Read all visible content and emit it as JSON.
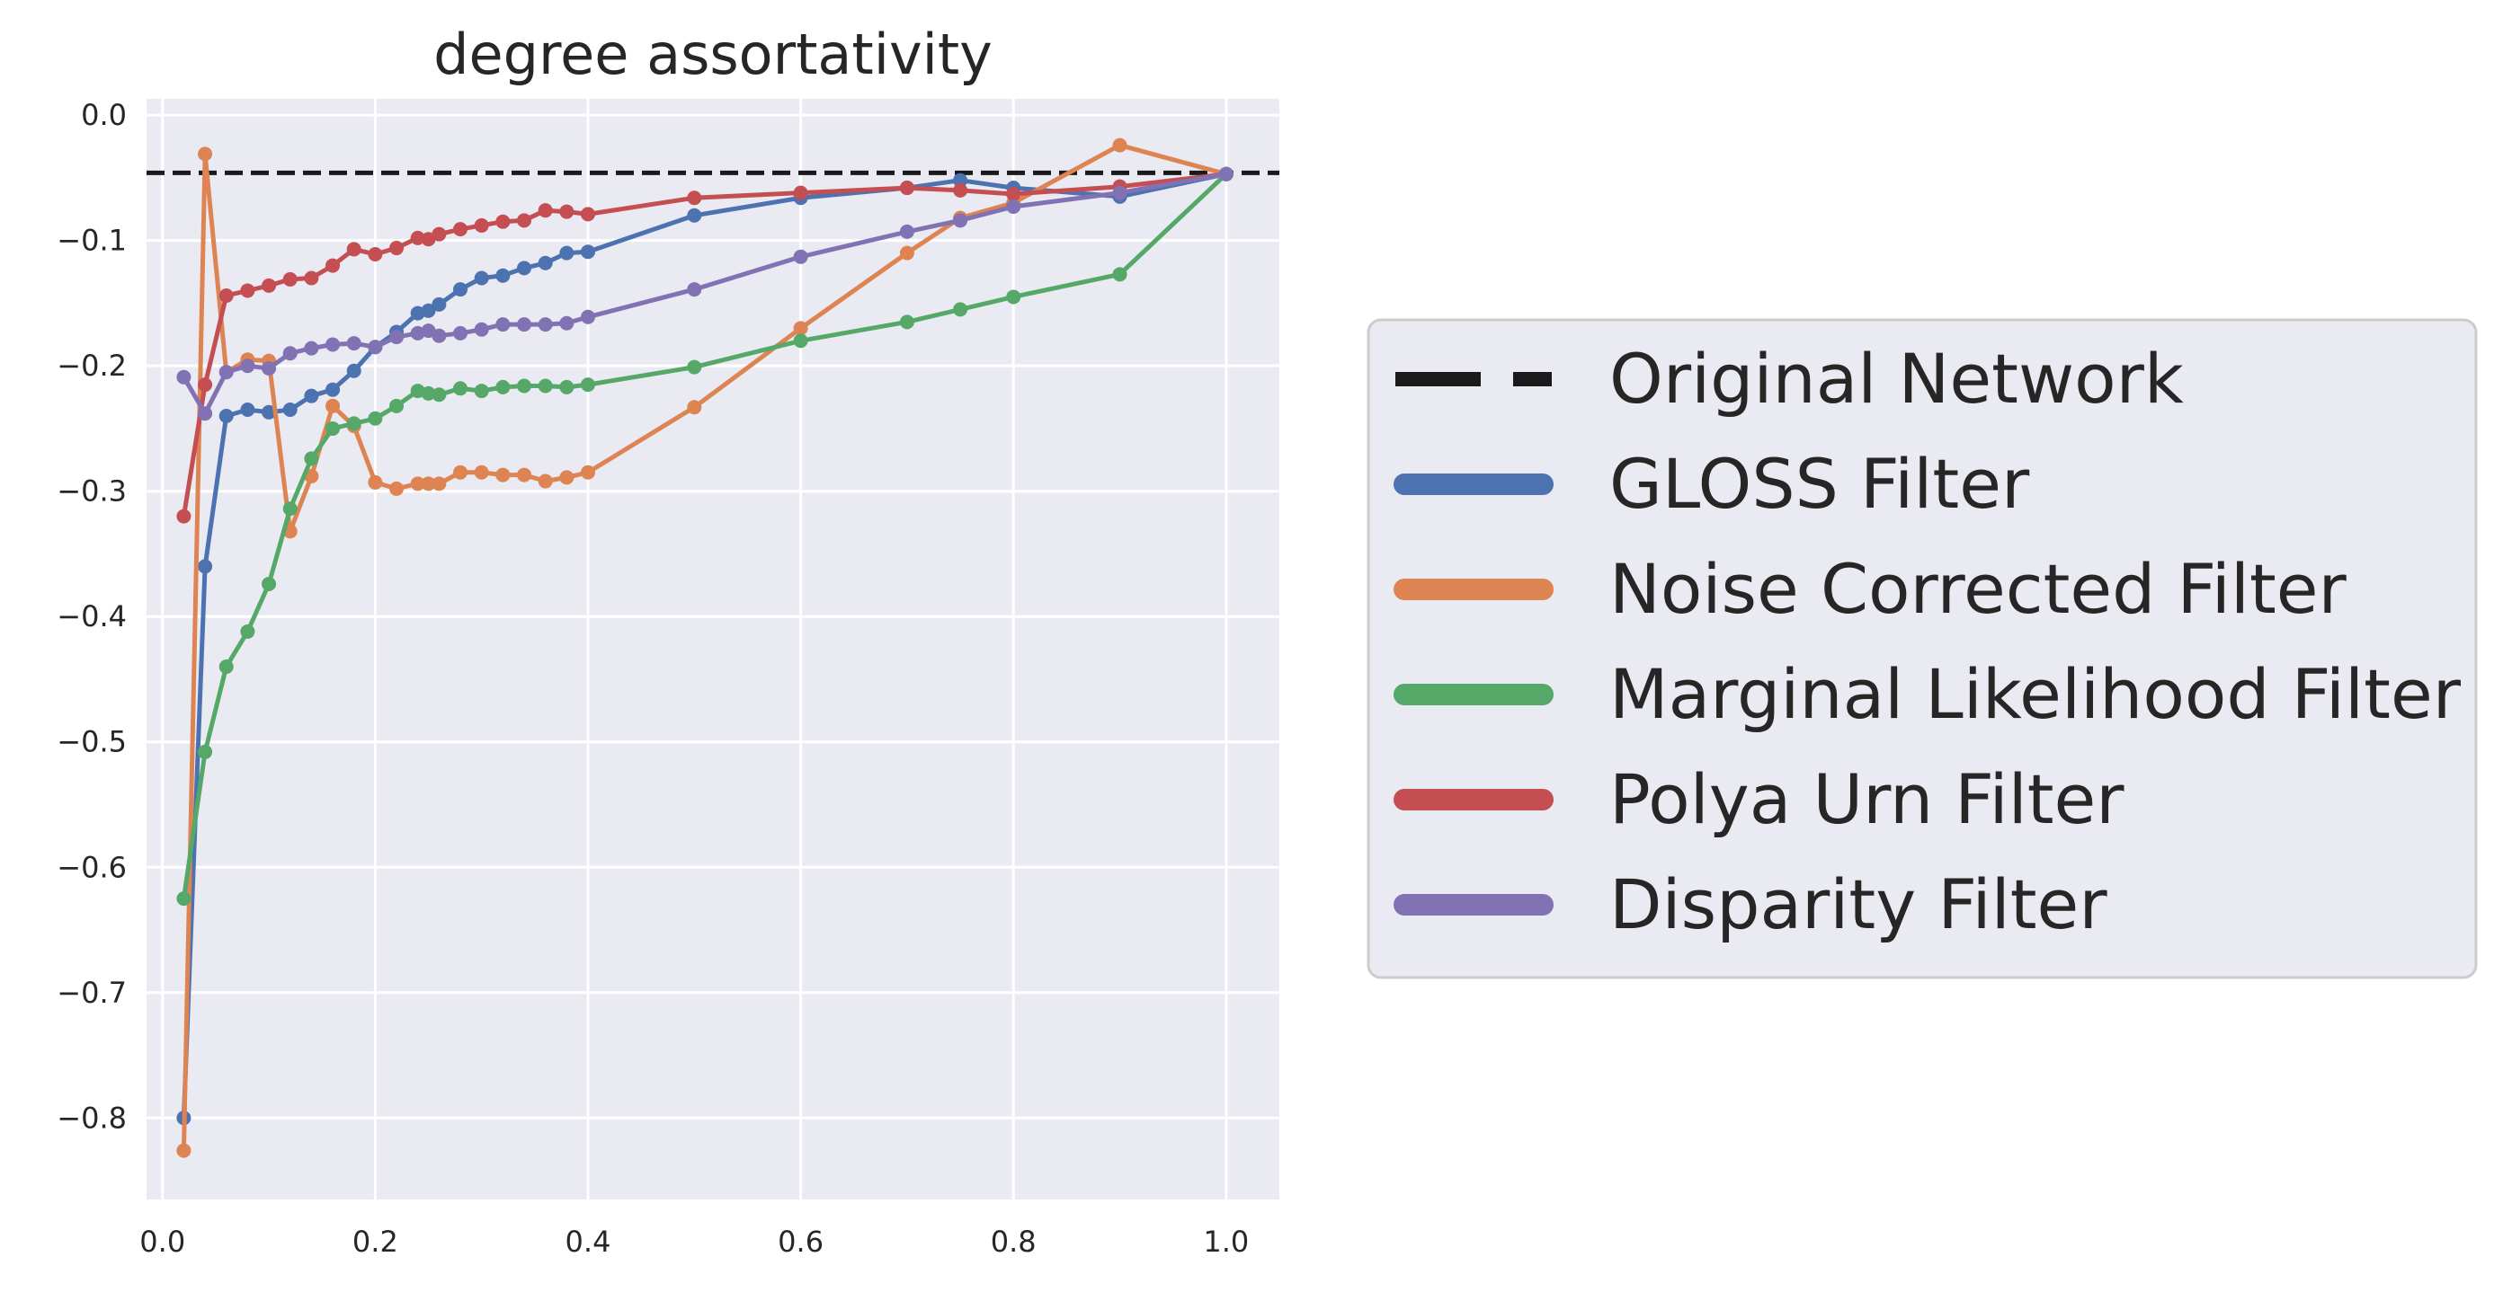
{
  "chart_data": {
    "type": "line",
    "title": "degree assortativity",
    "xlabel": "",
    "ylabel": "",
    "xlim": [
      -0.015,
      1.05
    ],
    "ylim": [
      -0.865,
      0.013
    ],
    "xticks": [
      0.0,
      0.2,
      0.4,
      0.6,
      0.8,
      1.0
    ],
    "xtick_labels": [
      "0.0",
      "0.2",
      "0.4",
      "0.6",
      "0.8",
      "1.0"
    ],
    "yticks": [
      0.0,
      -0.1,
      -0.2,
      -0.3,
      -0.4,
      -0.5,
      -0.6,
      -0.7,
      -0.8
    ],
    "ytick_labels": [
      "0.0",
      "−0.1",
      "−0.2",
      "−0.3",
      "−0.4",
      "−0.5",
      "−0.6",
      "−0.7",
      "−0.8"
    ],
    "grid": true,
    "legend_placement": "outside-right",
    "reference_line": {
      "name": "Original Network",
      "y": -0.046,
      "color": "#1a1a1a",
      "style": "dashed"
    },
    "series": [
      {
        "name": "GLOSS Filter",
        "color": "#4c72b0",
        "x": [
          0.02,
          0.04,
          0.06,
          0.08,
          0.1,
          0.12,
          0.14,
          0.16,
          0.18,
          0.2,
          0.22,
          0.24,
          0.25,
          0.26,
          0.28,
          0.3,
          0.32,
          0.34,
          0.36,
          0.38,
          0.4,
          0.5,
          0.6,
          0.7,
          0.75,
          0.8,
          0.9,
          1.0
        ],
        "y": [
          -0.8,
          -0.36,
          -0.24,
          -0.235,
          -0.237,
          -0.235,
          -0.224,
          -0.219,
          -0.204,
          -0.185,
          -0.173,
          -0.158,
          -0.156,
          -0.151,
          -0.139,
          -0.13,
          -0.128,
          -0.122,
          -0.118,
          -0.11,
          -0.109,
          -0.08,
          -0.066,
          -0.058,
          -0.052,
          -0.058,
          -0.065,
          -0.047
        ]
      },
      {
        "name": "Noise Corrected Filter",
        "color": "#dd8452",
        "x": [
          0.02,
          0.04,
          0.06,
          0.08,
          0.1,
          0.12,
          0.14,
          0.16,
          0.18,
          0.2,
          0.22,
          0.24,
          0.25,
          0.26,
          0.28,
          0.3,
          0.32,
          0.34,
          0.36,
          0.38,
          0.4,
          0.5,
          0.6,
          0.7,
          0.75,
          0.8,
          0.9,
          1.0
        ],
        "y": [
          -0.826,
          -0.031,
          -0.205,
          -0.195,
          -0.196,
          -0.332,
          -0.288,
          -0.232,
          -0.248,
          -0.293,
          -0.298,
          -0.294,
          -0.294,
          -0.294,
          -0.285,
          -0.285,
          -0.287,
          -0.287,
          -0.292,
          -0.289,
          -0.285,
          -0.233,
          -0.17,
          -0.11,
          -0.082,
          -0.07,
          -0.024,
          -0.047
        ]
      },
      {
        "name": "Marginal Likelihood Filter",
        "color": "#55a868",
        "x": [
          0.02,
          0.04,
          0.06,
          0.08,
          0.1,
          0.12,
          0.14,
          0.16,
          0.18,
          0.2,
          0.22,
          0.24,
          0.25,
          0.26,
          0.28,
          0.3,
          0.32,
          0.34,
          0.36,
          0.38,
          0.4,
          0.5,
          0.6,
          0.7,
          0.75,
          0.8,
          0.9,
          1.0
        ],
        "y": [
          -0.625,
          -0.508,
          -0.44,
          -0.412,
          -0.374,
          -0.314,
          -0.274,
          -0.25,
          -0.246,
          -0.242,
          -0.232,
          -0.22,
          -0.222,
          -0.223,
          -0.218,
          -0.22,
          -0.217,
          -0.216,
          -0.216,
          -0.217,
          -0.215,
          -0.201,
          -0.18,
          -0.165,
          -0.155,
          -0.145,
          -0.127,
          -0.047
        ]
      },
      {
        "name": "Polya Urn Filter",
        "color": "#c44e52",
        "x": [
          0.02,
          0.04,
          0.06,
          0.08,
          0.1,
          0.12,
          0.14,
          0.16,
          0.18,
          0.2,
          0.22,
          0.24,
          0.25,
          0.26,
          0.28,
          0.3,
          0.32,
          0.34,
          0.36,
          0.38,
          0.4,
          0.5,
          0.6,
          0.7,
          0.75,
          0.8,
          0.9,
          1.0
        ],
        "y": [
          -0.32,
          -0.215,
          -0.144,
          -0.14,
          -0.136,
          -0.131,
          -0.13,
          -0.12,
          -0.107,
          -0.111,
          -0.106,
          -0.098,
          -0.099,
          -0.095,
          -0.091,
          -0.088,
          -0.085,
          -0.084,
          -0.076,
          -0.077,
          -0.079,
          -0.066,
          -0.062,
          -0.058,
          -0.06,
          -0.063,
          -0.057,
          -0.047
        ]
      },
      {
        "name": "Disparity Filter",
        "color": "#8172b3",
        "x": [
          0.02,
          0.04,
          0.06,
          0.08,
          0.1,
          0.12,
          0.14,
          0.16,
          0.18,
          0.2,
          0.22,
          0.24,
          0.25,
          0.26,
          0.28,
          0.3,
          0.32,
          0.34,
          0.36,
          0.38,
          0.4,
          0.5,
          0.6,
          0.7,
          0.75,
          0.8,
          0.9,
          1.0
        ],
        "y": [
          -0.209,
          -0.238,
          -0.205,
          -0.2,
          -0.202,
          -0.19,
          -0.186,
          -0.183,
          -0.182,
          -0.185,
          -0.177,
          -0.174,
          -0.172,
          -0.176,
          -0.174,
          -0.171,
          -0.167,
          -0.167,
          -0.167,
          -0.166,
          -0.161,
          -0.139,
          -0.113,
          -0.093,
          -0.084,
          -0.073,
          -0.062,
          -0.047
        ]
      }
    ]
  }
}
